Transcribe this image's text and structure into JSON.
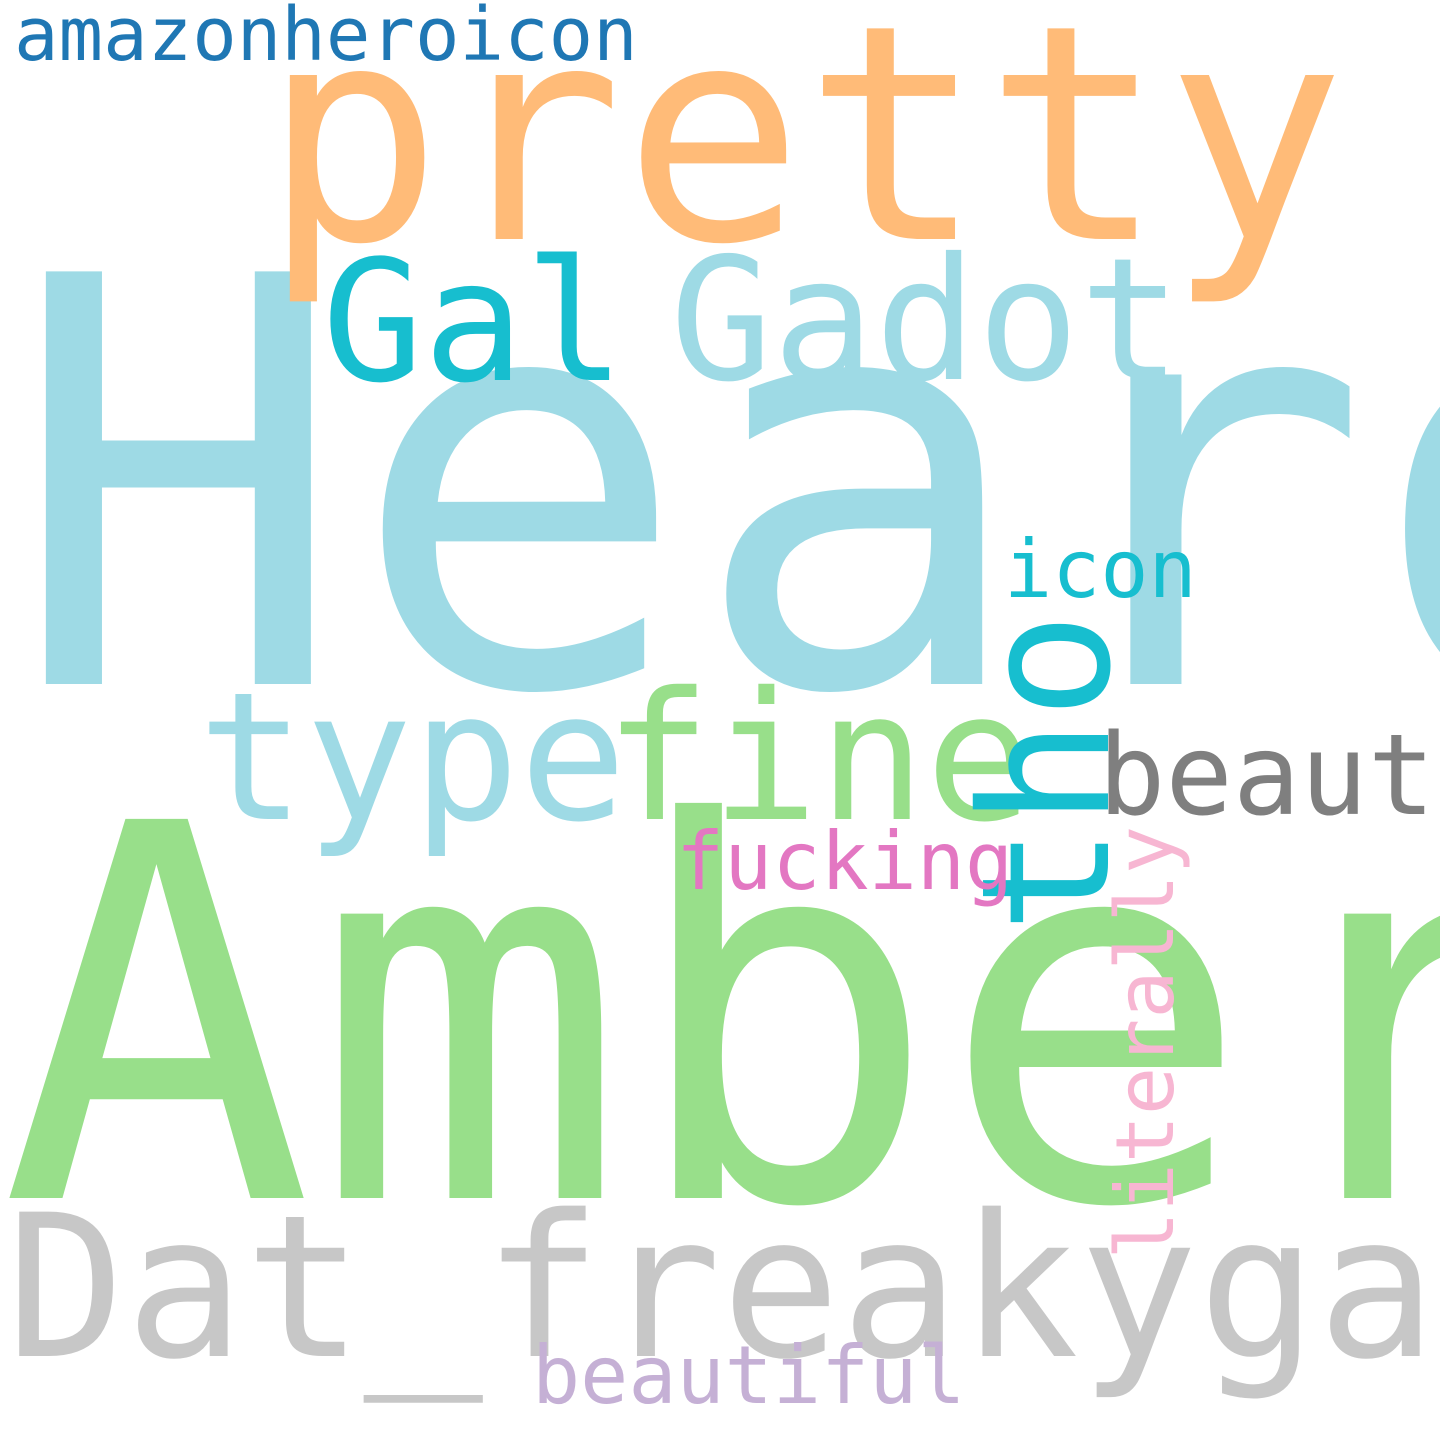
{
  "words": {
    "heard": {
      "text": "Heard",
      "color": "#9edae5"
    },
    "amber": {
      "text": "Amber",
      "color": "#98df8a"
    },
    "pretty": {
      "text": "pretty",
      "color": "#ffbb78"
    },
    "dat_freakygarl": {
      "text": "Dat_freakygarl",
      "color": "#c7c7c7"
    },
    "gal": {
      "text": "Gal",
      "color": "#17becf"
    },
    "gadot": {
      "text": "Gadot",
      "color": "#9edae5"
    },
    "type": {
      "text": "type",
      "color": "#9edae5"
    },
    "fine": {
      "text": "fine",
      "color": "#98df8a"
    },
    "tho": {
      "text": "tho",
      "color": "#17becf"
    },
    "beauty": {
      "text": "beauty",
      "color": "#7f7f7f"
    },
    "icon": {
      "text": "icon",
      "color": "#17becf"
    },
    "fucking": {
      "text": "fucking",
      "color": "#e377c2"
    },
    "literally": {
      "text": "literally",
      "color": "#f7b6d2"
    },
    "beautiful": {
      "text": "beautiful",
      "color": "#c5b0d5"
    },
    "amazonheroicon": {
      "text": "amazonheroicon",
      "color": "#1f77b4"
    }
  }
}
